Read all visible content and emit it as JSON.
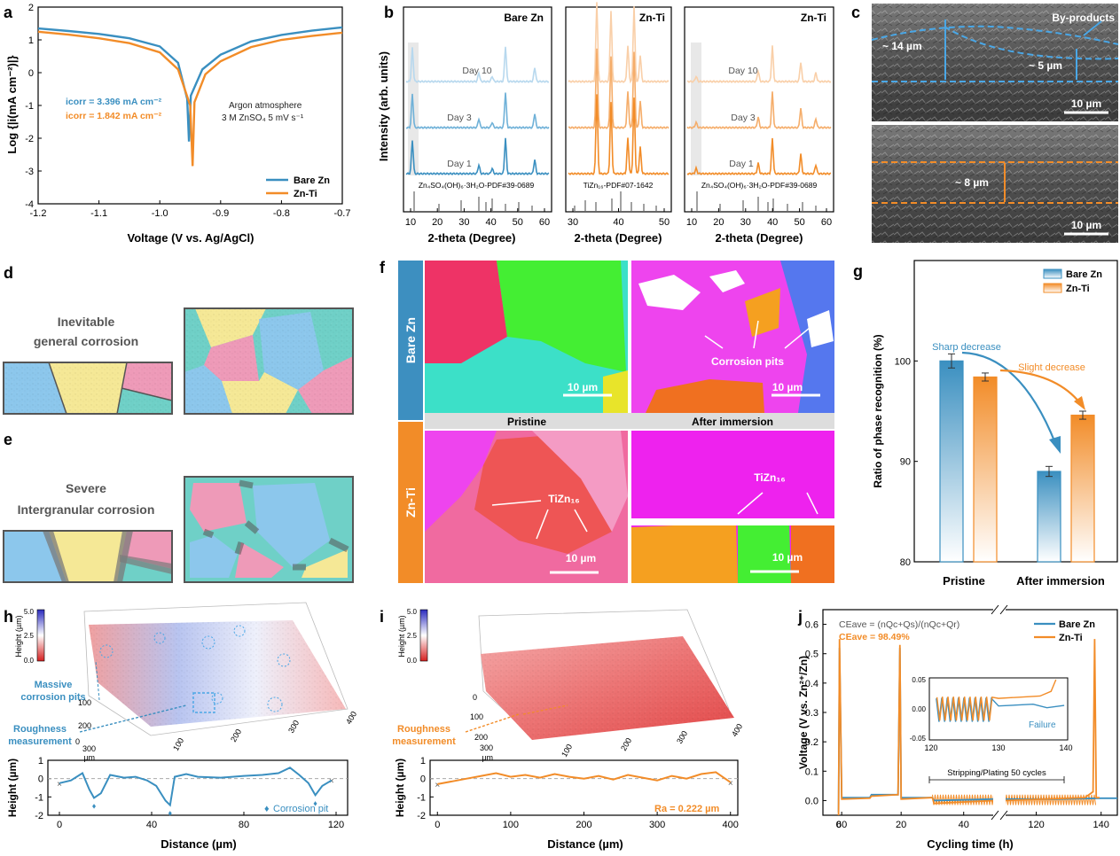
{
  "colors": {
    "bare_zn": "#3a8fc0",
    "zn_ti": "#f28c28",
    "panel_blue": "#3d8fc0",
    "panel_orange": "#f28c28",
    "grain_blue": "#8cc7ec",
    "grain_yellow": "#f5e896",
    "grain_pink": "#ee9ab8",
    "grain_teal": "#6fd0c7"
  },
  "panel_labels": {
    "a": "a",
    "b": "b",
    "c": "c",
    "d": "d",
    "e": "e",
    "f": "f",
    "g": "g",
    "h": "h",
    "i": "i",
    "j": "j"
  },
  "panel_a": {
    "ylabel": "Log {|i(mA cm⁻²)|}",
    "xlabel": "Voltage (V vs. Ag/AgCl)",
    "xticks": [
      "-1.2",
      "-1.1",
      "-1.0",
      "-0.9",
      "-0.8",
      "-0.7"
    ],
    "yticks": [
      "2",
      "1",
      "0",
      "-1",
      "-2",
      "-3",
      "-4"
    ],
    "icorr_bare_label": "icorr = 3.396 mA cm⁻²",
    "icorr_ti_label": "icorr = 1.842 mA cm⁻²",
    "condition_line1": "Argon atmosphere",
    "condition_line2": "3 M ZnSO₄  5 mV s⁻¹",
    "legend": [
      "Bare Zn",
      "Zn-Ti"
    ]
  },
  "panel_b": {
    "ylabel": "Intensity (arb. units)",
    "xlabel": "2-theta (Degree)",
    "titles": [
      "Bare Zn",
      "Zn-Ti",
      "Zn-Ti"
    ],
    "days": [
      "Day 10",
      "Day 3",
      "Day 1"
    ],
    "ref_left": "Zn₄SO₄(OH)₆·3H₂O-PDF#39-0689",
    "ref_mid": "TiZn₁₆-PDF#07-1642",
    "ref_right": "Zn₄SO₄(OH)₆·3H₂O-PDF#39-0689",
    "xticks_left": [
      "10",
      "20",
      "30",
      "40",
      "50",
      "60"
    ],
    "xticks_mid": [
      "30",
      "40",
      "50"
    ],
    "xticks_right": [
      "10",
      "20",
      "30",
      "40",
      "50",
      "60"
    ]
  },
  "panel_c": {
    "byproducts": "By-products",
    "thick1": "~ 14 µm",
    "thick2": "~ 5 µm",
    "thick3": "~ 8 µm",
    "scale": "10 µm"
  },
  "panel_d": {
    "title_line1": "Inevitable",
    "title_line2": "general corrosion"
  },
  "panel_e": {
    "title_line1": "Severe",
    "title_line2": "Intergranular corrosion"
  },
  "panel_f": {
    "side_top": "Bare Zn",
    "side_bottom": "Zn-Ti",
    "col_left": "Pristine",
    "col_right": "After immersion",
    "pits": "Corrosion pits",
    "tizn_left": "TiZn₁₆",
    "tizn_right": "TiZn₁₆",
    "scale": "10 µm"
  },
  "panel_h": {
    "height_label": "Height (µm)",
    "cbar_ticks": [
      "5.0",
      "2.5",
      "0.0"
    ],
    "pits_label_1": "Massive",
    "pits_label_2": "corrosion pits",
    "rough_label_1": "Roughness",
    "rough_label_2": "measurement",
    "axis_um": "µm",
    "y_ticks_3d": [
      "0",
      "100",
      "200",
      "300"
    ],
    "x_ticks_3d": [
      "100",
      "200",
      "300",
      "400"
    ],
    "profile_ylabel": "Height (µm)",
    "profile_xlabel": "Distance (µm)",
    "profile_xticks": [
      "0",
      "40",
      "80",
      "120"
    ],
    "profile_yticks": [
      "1",
      "0",
      "-1",
      "-2"
    ],
    "pit_legend": "Corrosion pit"
  },
  "panel_i": {
    "height_label": "Height (µm)",
    "cbar_ticks": [
      "5.0",
      "2.5",
      "0.0"
    ],
    "rough_label_1": "Roughness",
    "rough_label_2": "measurement",
    "axis_um": "µm",
    "y_ticks_3d": [
      "0",
      "100",
      "200",
      "300"
    ],
    "x_ticks_3d": [
      "100",
      "200",
      "300",
      "400"
    ],
    "profile_ylabel": "Height (µm)",
    "profile_xlabel": "Distance (µm)",
    "profile_xticks": [
      "0",
      "100",
      "200",
      "300",
      "400"
    ],
    "profile_yticks": [
      "1",
      "0",
      "-1",
      "-2"
    ],
    "ra_label": "Ra = 0.222 µm"
  },
  "panel_j": {
    "ylabel": "Voltage (V vs. Zn²⁺/Zn)",
    "xlabel": "Cycling time (h)",
    "xticks": [
      "0",
      "20",
      "40",
      "60",
      "120",
      "140"
    ],
    "yticks": [
      "0.0",
      "0.1",
      "0.2",
      "0.3",
      "0.4",
      "0.5",
      "0.6"
    ],
    "ce_formula": "CEave = (nQc+Qs)/(nQc+Qr)",
    "ce_value": "CEave = 98.49%",
    "legend": [
      "Bare Zn",
      "Zn-Ti"
    ],
    "stripping": "Stripping/Plating 50 cycles",
    "inset_yticks": [
      "0.05",
      "0.00",
      "-0.05"
    ],
    "inset_xticks": [
      "120",
      "130",
      "140"
    ],
    "failure": "Failure"
  },
  "chart_data": [
    {
      "type": "line",
      "panel": "a",
      "xlabel": "Voltage (V vs. Ag/AgCl)",
      "ylabel": "Log {|i(mA cm⁻²)|}",
      "xlim": [
        -1.2,
        -0.7
      ],
      "ylim": [
        -4,
        2
      ],
      "series": [
        {
          "name": "Bare Zn",
          "x": [
            -1.2,
            -1.15,
            -1.1,
            -1.05,
            -1.0,
            -0.97,
            -0.955,
            -0.952,
            -0.949,
            -0.93,
            -0.9,
            -0.85,
            -0.8,
            -0.75,
            -0.7
          ],
          "y": [
            1.35,
            1.27,
            1.18,
            1.05,
            0.8,
            0.3,
            -0.8,
            -2.1,
            -0.7,
            0.1,
            0.55,
            0.95,
            1.15,
            1.28,
            1.38
          ]
        },
        {
          "name": "Zn-Ti",
          "x": [
            -1.2,
            -1.15,
            -1.1,
            -1.05,
            -1.0,
            -0.97,
            -0.95,
            -0.946,
            -0.943,
            -0.925,
            -0.9,
            -0.85,
            -0.8,
            -0.75,
            -0.7
          ],
          "y": [
            1.25,
            1.16,
            1.05,
            0.9,
            0.62,
            0.1,
            -1.0,
            -2.85,
            -0.9,
            -0.05,
            0.35,
            0.78,
            1.0,
            1.12,
            1.22
          ]
        }
      ]
    },
    {
      "type": "bar",
      "panel": "g",
      "ylabel": "Ratio of phase recognition (%)",
      "categories": [
        "Pristine",
        "After immersion"
      ],
      "ylim": [
        80,
        110
      ],
      "series": [
        {
          "name": "Bare Zn",
          "values": [
            100.0,
            89.0
          ],
          "errors": [
            0.7,
            0.5
          ]
        },
        {
          "name": "Zn-Ti",
          "values": [
            98.4,
            94.6
          ],
          "errors": [
            0.4,
            0.4
          ]
        }
      ],
      "annotations": [
        "Sharp decrease",
        "Slight decrease"
      ],
      "yticks": [
        "80",
        "90",
        "100"
      ]
    },
    {
      "type": "line",
      "panel": "h-profile",
      "xlabel": "Distance (µm)",
      "ylabel": "Height (µm)",
      "xlim": [
        -5,
        125
      ],
      "ylim": [
        -2,
        1
      ],
      "series": [
        {
          "name": "Bare Zn",
          "x": [
            0,
            5,
            10,
            13,
            15,
            18,
            22,
            28,
            33,
            38,
            42,
            46,
            48,
            50,
            55,
            60,
            70,
            80,
            88,
            95,
            100,
            104,
            108,
            111,
            114,
            118
          ],
          "y": [
            -0.25,
            -0.1,
            0.3,
            -0.6,
            -1.05,
            -0.8,
            0.2,
            0.05,
            0.1,
            -0.1,
            -0.4,
            -1.2,
            -1.45,
            0.1,
            0.25,
            0.1,
            0.05,
            0.15,
            0.2,
            0.3,
            0.6,
            0.2,
            -0.25,
            -0.9,
            -0.4,
            -0.1
          ]
        }
      ]
    },
    {
      "type": "line",
      "panel": "i-profile",
      "xlabel": "Distance (µm)",
      "ylabel": "Height (µm)",
      "xlim": [
        -10,
        410
      ],
      "ylim": [
        -2,
        1
      ],
      "series": [
        {
          "name": "Zn-Ti",
          "x": [
            0,
            20,
            40,
            60,
            80,
            100,
            120,
            140,
            160,
            180,
            200,
            220,
            240,
            260,
            280,
            300,
            320,
            340,
            360,
            380,
            400
          ],
          "y": [
            -0.3,
            -0.15,
            0.0,
            0.15,
            0.3,
            0.1,
            0.2,
            0.05,
            0.25,
            0.1,
            0.0,
            0.15,
            -0.05,
            0.2,
            0.05,
            -0.1,
            0.15,
            0.0,
            0.25,
            0.35,
            -0.2
          ]
        }
      ]
    },
    {
      "type": "line",
      "panel": "j",
      "xlabel": "Cycling time (h)",
      "ylabel": "Voltage (V vs. Zn²⁺/Zn)",
      "ylim": [
        -0.05,
        0.65
      ],
      "x_break": [
        50,
        110
      ],
      "series": [
        {
          "name": "Bare Zn",
          "x": [
            0,
            0.3,
            1,
            10,
            10.5,
            19,
            19.6,
            20,
            30,
            30.5,
            50,
            110,
            125,
            140,
            145
          ],
          "y": [
            -0.04,
            0.52,
            0.01,
            0.01,
            0.02,
            0.02,
            0.52,
            0.01,
            0.01,
            0.0,
            0.005,
            0.005,
            0.005,
            0.008,
            0.008
          ]
        },
        {
          "name": "Zn-Ti",
          "x": [
            0,
            0.3,
            1,
            10,
            10.5,
            19,
            19.6,
            20,
            30,
            30.5,
            50,
            110,
            135,
            137.5,
            138,
            138.5,
            139.5
          ],
          "y": [
            -0.05,
            0.55,
            0.005,
            0.008,
            0.015,
            0.02,
            0.53,
            0.005,
            0.01,
            -0.01,
            0.0,
            0.0,
            0.01,
            0.03,
            0.55,
            0.01,
            0.01
          ]
        }
      ]
    }
  ]
}
